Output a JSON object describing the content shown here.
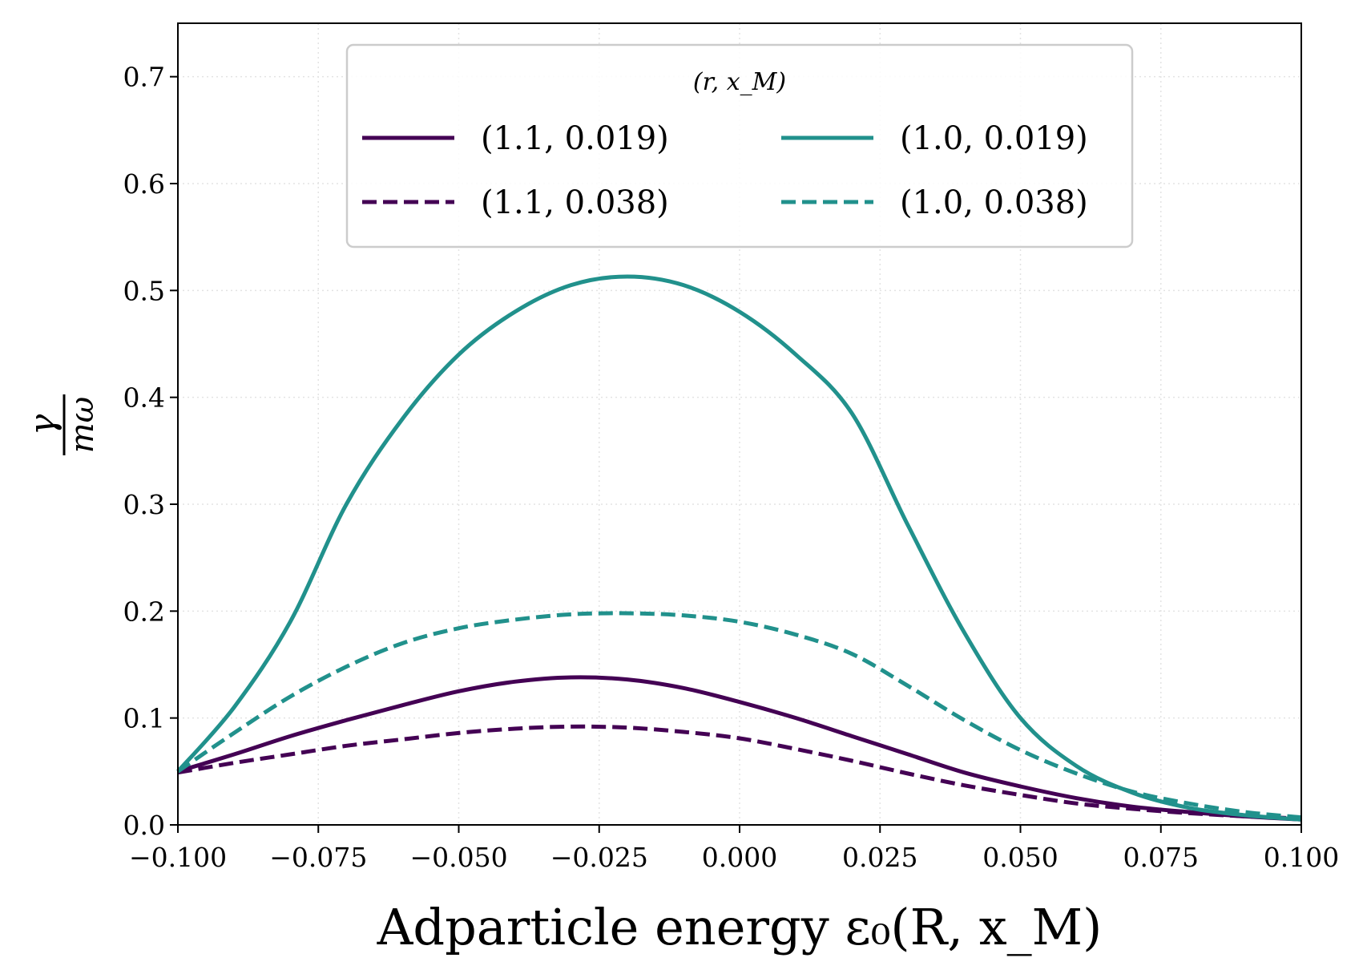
{
  "chart_data": {
    "type": "line",
    "title": "",
    "xlabel": "Adparticle energy ε₀(R, x_M)",
    "ylabel_numerator": "γ",
    "ylabel_denominator": "mω",
    "xlim": [
      -0.1,
      0.1
    ],
    "ylim": [
      0.0,
      0.75
    ],
    "grid": true,
    "x_ticks": [
      -0.1,
      -0.075,
      -0.05,
      -0.025,
      0.0,
      0.025,
      0.05,
      0.075,
      0.1
    ],
    "x_tick_labels": [
      "−0.100",
      "−0.075",
      "−0.050",
      "−0.025",
      "0.000",
      "0.025",
      "0.050",
      "0.075",
      "0.100"
    ],
    "y_ticks": [
      0.0,
      0.1,
      0.2,
      0.3,
      0.4,
      0.5,
      0.6,
      0.7
    ],
    "y_tick_labels": [
      "0.0",
      "0.1",
      "0.2",
      "0.3",
      "0.4",
      "0.5",
      "0.6",
      "0.7"
    ],
    "legend": {
      "title": "(r, x_M)",
      "placement": "upper-center",
      "columns": 2
    },
    "series": [
      {
        "name": "(1.1, 0.019)",
        "color": "#440154",
        "style": "solid",
        "x": [
          -0.1,
          -0.09,
          -0.08,
          -0.07,
          -0.06,
          -0.05,
          -0.04,
          -0.03,
          -0.02,
          -0.01,
          0.0,
          0.01,
          0.02,
          0.03,
          0.04,
          0.05,
          0.06,
          0.07,
          0.08,
          0.09,
          0.1
        ],
        "y": [
          0.05,
          0.066,
          0.083,
          0.098,
          0.112,
          0.125,
          0.134,
          0.138,
          0.136,
          0.128,
          0.115,
          0.1,
          0.083,
          0.066,
          0.049,
          0.036,
          0.025,
          0.017,
          0.012,
          0.008,
          0.005
        ]
      },
      {
        "name": "(1.1, 0.038)",
        "color": "#440154",
        "style": "dashed",
        "x": [
          -0.1,
          -0.09,
          -0.08,
          -0.07,
          -0.06,
          -0.05,
          -0.04,
          -0.03,
          -0.02,
          -0.01,
          0.0,
          0.01,
          0.02,
          0.03,
          0.04,
          0.05,
          0.06,
          0.07,
          0.08,
          0.09,
          0.1
        ],
        "y": [
          0.049,
          0.058,
          0.066,
          0.074,
          0.08,
          0.086,
          0.09,
          0.092,
          0.091,
          0.087,
          0.081,
          0.071,
          0.06,
          0.048,
          0.037,
          0.028,
          0.02,
          0.015,
          0.011,
          0.008,
          0.006
        ]
      },
      {
        "name": "(1.0, 0.019)",
        "color": "#21918c",
        "style": "solid",
        "x": [
          -0.1,
          -0.09,
          -0.08,
          -0.07,
          -0.06,
          -0.05,
          -0.04,
          -0.03,
          -0.02,
          -0.01,
          0.0,
          0.01,
          0.02,
          0.03,
          0.04,
          0.05,
          0.06,
          0.07,
          0.08,
          0.09,
          0.1
        ],
        "y": [
          0.05,
          0.11,
          0.19,
          0.3,
          0.38,
          0.44,
          0.48,
          0.505,
          0.513,
          0.505,
          0.48,
          0.44,
          0.385,
          0.28,
          0.18,
          0.1,
          0.055,
          0.03,
          0.016,
          0.009,
          0.005
        ]
      },
      {
        "name": "(1.0, 0.038)",
        "color": "#21918c",
        "style": "dashed",
        "x": [
          -0.1,
          -0.09,
          -0.08,
          -0.07,
          -0.06,
          -0.05,
          -0.04,
          -0.03,
          -0.02,
          -0.01,
          0.0,
          0.01,
          0.02,
          0.03,
          0.04,
          0.05,
          0.06,
          0.07,
          0.08,
          0.09,
          0.1
        ],
        "y": [
          0.05,
          0.086,
          0.12,
          0.148,
          0.17,
          0.184,
          0.192,
          0.197,
          0.198,
          0.196,
          0.19,
          0.178,
          0.16,
          0.13,
          0.098,
          0.07,
          0.048,
          0.031,
          0.02,
          0.012,
          0.007
        ]
      }
    ]
  }
}
